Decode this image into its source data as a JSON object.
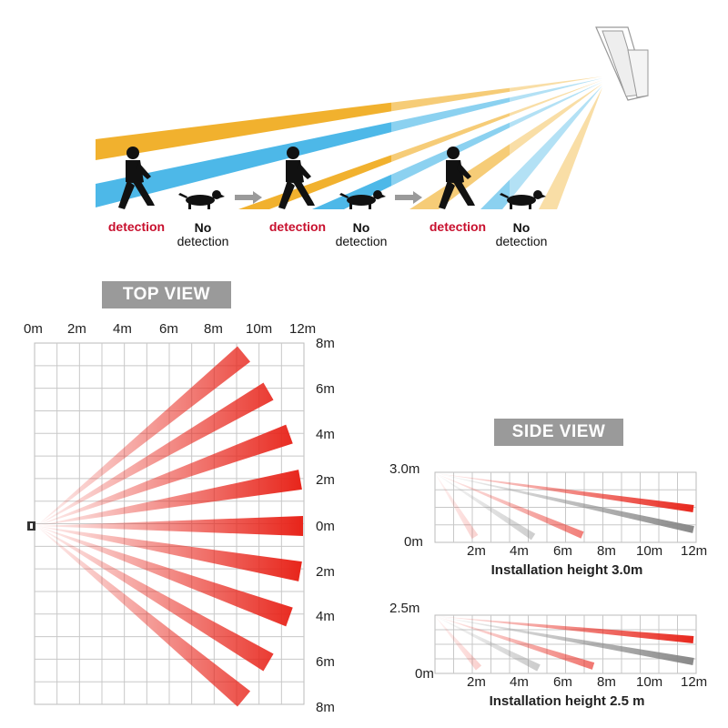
{
  "top_illustration": {
    "groups": [
      {
        "detection_label": "detection",
        "no_label": "No",
        "detection_word": "detection"
      },
      {
        "detection_label": "detection",
        "no_label": "No",
        "detection_word": "detection"
      },
      {
        "detection_label": "detection",
        "no_label": "No",
        "detection_word": "detection"
      }
    ],
    "colors": {
      "beam_orange": "#f0a817",
      "beam_blue": "#3ab0e6",
      "detection_text": "#c8102e"
    }
  },
  "top_view": {
    "title": "TOP VIEW",
    "x_ticks": [
      "0m",
      "2m",
      "4m",
      "6m",
      "8m",
      "10m",
      "12m"
    ],
    "y_ticks": [
      "8m",
      "6m",
      "4m",
      "2m",
      "0m",
      "2m",
      "4m",
      "6m",
      "8m"
    ],
    "beam_count": 9,
    "beam_color": "#e8261c"
  },
  "side_view": {
    "title": "SIDE VIEW",
    "panels": [
      {
        "top_label": "3.0m",
        "bottom_label": "0m",
        "x_ticks": [
          "2m",
          "4m",
          "6m",
          "8m",
          "10m",
          "12m"
        ],
        "caption": "Installation height 3.0m"
      },
      {
        "top_label": "2.5m",
        "bottom_label": "0m",
        "x_ticks": [
          "2m",
          "4m",
          "6m",
          "8m",
          "10m",
          "12m"
        ],
        "caption": "Installation height 2.5 m"
      }
    ]
  }
}
